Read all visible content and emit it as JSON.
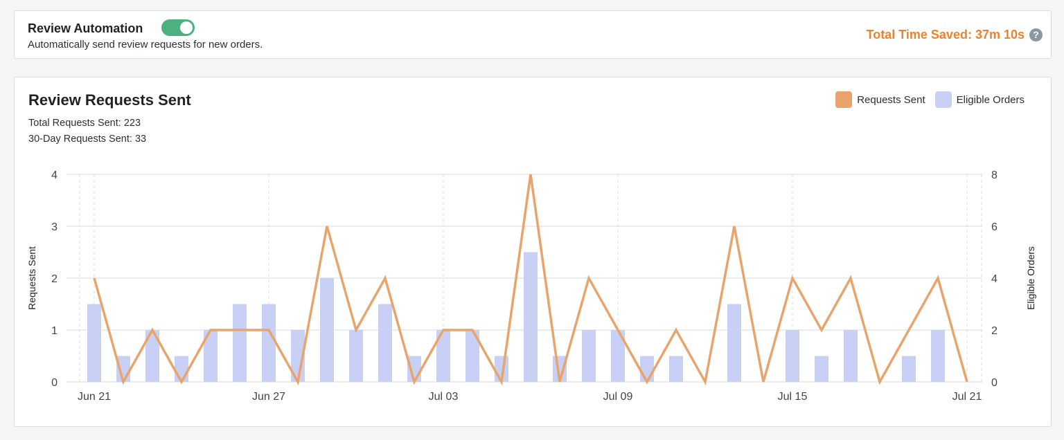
{
  "automation": {
    "title": "Review Automation",
    "enabled": true,
    "description": "Automatically send review requests for new orders.",
    "time_saved": "Total Time Saved: 37m 10s",
    "help_icon": "?"
  },
  "chart_header": {
    "title": "Review Requests Sent",
    "total_sent": "Total Requests Sent: 223",
    "thirty_day_sent": "30-Day Requests Sent: 33"
  },
  "colors": {
    "requests_line": "#e8a46b",
    "eligible_bars": "#c9d0f5",
    "toggle_on": "#4cb07f",
    "accent": "#f0812b"
  },
  "chart_data": {
    "type": "bar",
    "x": [
      "Jun 21",
      "Jun 22",
      "Jun 23",
      "Jun 24",
      "Jun 25",
      "Jun 26",
      "Jun 27",
      "Jun 28",
      "Jun 29",
      "Jun 30",
      "Jul 01",
      "Jul 02",
      "Jul 03",
      "Jul 04",
      "Jul 05",
      "Jul 06",
      "Jul 07",
      "Jul 08",
      "Jul 09",
      "Jul 10",
      "Jul 11",
      "Jul 12",
      "Jul 13",
      "Jul 14",
      "Jul 15",
      "Jul 16",
      "Jul 17",
      "Jul 18",
      "Jul 19",
      "Jul 20",
      "Jul 21"
    ],
    "x_ticks": [
      "Jun 21",
      "Jun 27",
      "Jul 03",
      "Jul 09",
      "Jul 15",
      "Jul 21"
    ],
    "series": [
      {
        "name": "Eligible Orders",
        "type": "bar",
        "axis": "right",
        "values": [
          3,
          1,
          2,
          1,
          2,
          3,
          3,
          2,
          4,
          2,
          3,
          1,
          2,
          2,
          1,
          5,
          1,
          2,
          2,
          1,
          1,
          0,
          3,
          0,
          2,
          1,
          2,
          0,
          1,
          2,
          0
        ]
      },
      {
        "name": "Requests Sent",
        "type": "line",
        "axis": "left",
        "values": [
          2,
          0,
          1,
          0,
          1,
          1,
          1,
          0,
          3,
          1,
          2,
          0,
          1,
          1,
          0,
          4,
          0,
          2,
          1,
          0,
          1,
          0,
          3,
          0,
          2,
          1,
          2,
          0,
          1,
          2,
          0
        ]
      }
    ],
    "ylabel_left": "Requests Sent",
    "ylabel_right": "Eligible Orders",
    "ylim_left": [
      0,
      4
    ],
    "ylim_right": [
      0,
      8
    ],
    "yticks_left": [
      "0",
      "1",
      "2",
      "3",
      "4"
    ],
    "yticks_right": [
      "0",
      "2",
      "4",
      "6",
      "8"
    ],
    "grid": true,
    "legend_position": "top-right"
  }
}
